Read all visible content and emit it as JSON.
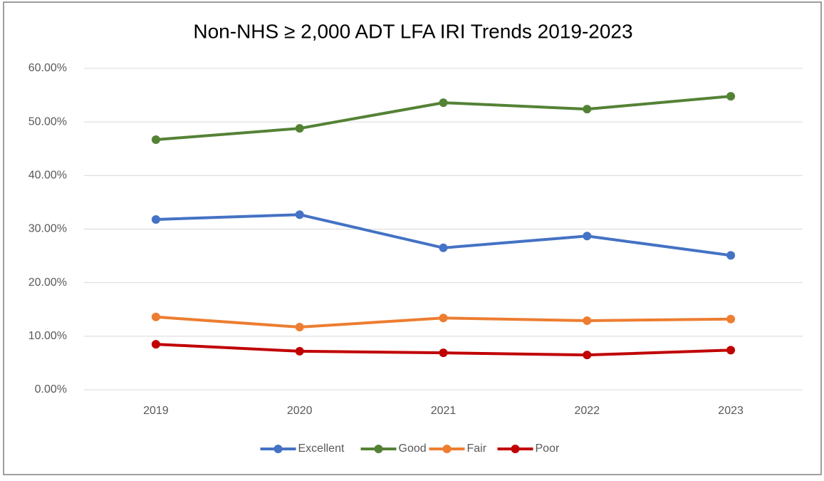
{
  "chart_data": {
    "type": "line",
    "title": "Non-NHS ≥ 2,000 ADT LFA IRI Trends 2019-2023",
    "categories": [
      "2019",
      "2020",
      "2021",
      "2022",
      "2023"
    ],
    "series": [
      {
        "name": "Excellent",
        "color": "#4472c4",
        "values": [
          31.8,
          32.7,
          26.5,
          28.7,
          25.1
        ]
      },
      {
        "name": "Good",
        "color": "#548235",
        "values": [
          46.7,
          48.8,
          53.6,
          52.4,
          54.8
        ]
      },
      {
        "name": "Fair",
        "color": "#ed7d31",
        "values": [
          13.6,
          11.7,
          13.4,
          12.9,
          13.2
        ]
      },
      {
        "name": "Poor",
        "color": "#c00000",
        "values": [
          8.5,
          7.2,
          6.9,
          6.5,
          7.4
        ]
      }
    ],
    "ylim": [
      0,
      60
    ],
    "yticks": [
      {
        "value": 0,
        "label": "0.00%"
      },
      {
        "value": 10,
        "label": "10.00%"
      },
      {
        "value": 20,
        "label": "20.00%"
      },
      {
        "value": 30,
        "label": "30.00%"
      },
      {
        "value": 40,
        "label": "40.00%"
      },
      {
        "value": 50,
        "label": "50.00%"
      },
      {
        "value": 60,
        "label": "60.00%"
      }
    ],
    "grid": true,
    "legend": "bottom"
  }
}
